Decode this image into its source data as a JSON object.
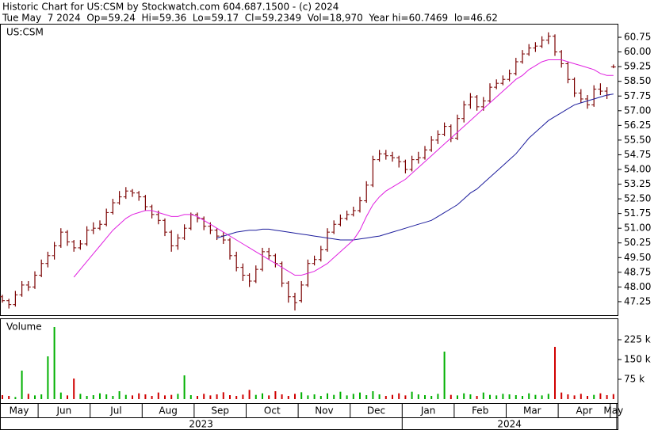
{
  "chart_data": {
    "type": "ohlc",
    "title": "Historic Chart for US:CSM by Stockwatch.com 604.687.1500 - (c) 2024",
    "subtitle": "Tue May  7 2024  Op=59.24  Hi=59.36  Lo=59.17  Cl=59.2349  Vol=18,970  Year hi=60.7469  lo=46.62",
    "symbol": "US:CSM",
    "volume_label": "Volume",
    "bar_color": "#7a0000",
    "up_color": "#00b000",
    "down_color": "#d00000",
    "ma_fast_color": "#e020e0",
    "ma_slow_color": "#1c1c9c",
    "ylim": [
      46.56,
      61.44
    ],
    "yticks": [
      47.25,
      {
        "value": 48,
        "label": "48.00"
      },
      48.75,
      {
        "value": 49.5,
        "label": "49.50"
      },
      50.25,
      {
        "value": 51,
        "label": "51.00"
      },
      51.75,
      {
        "value": 52.5,
        "label": "52.50"
      },
      53.25,
      {
        "value": 54,
        "label": "54.00"
      },
      54.75,
      {
        "value": 55.5,
        "label": "55.50"
      },
      56.25,
      {
        "value": 57,
        "label": "57.00"
      },
      57.75,
      {
        "value": 58.5,
        "label": "58.50"
      },
      59.25,
      {
        "value": 60,
        "label": "60.00"
      },
      60.75
    ],
    "vol_ylim": [
      0,
      300000
    ],
    "vol_yticks": [
      {
        "value": 75000,
        "label": "75 k"
      },
      {
        "value": 150000,
        "label": "150 k"
      },
      {
        "value": 225000,
        "label": "225 k"
      }
    ],
    "years": [
      {
        "label": "2023",
        "months": [
          {
            "label": "May",
            "open": [
              47.5,
              47.3,
              47.1,
              47.6,
              48.1,
              48.0
            ],
            "high": [
              47.6,
              47.4,
              47.8,
              48.3,
              48.3,
              48.8
            ],
            "low": [
              47.2,
              46.9,
              47.0,
              47.5,
              47.8,
              47.9
            ],
            "close": [
              47.3,
              47.1,
              47.6,
              48.1,
              48.0,
              48.6
            ],
            "volume": [
              15000,
              12000,
              8000,
              108000,
              20000,
              14000
            ],
            "ma_fast": [
              null,
              null,
              null,
              null,
              null,
              null
            ],
            "ma_slow": [
              null,
              null,
              null,
              null,
              null,
              null
            ]
          },
          {
            "label": "Jun",
            "open": [
              48.6,
              49.2,
              49.6,
              50.1,
              50.8,
              50.3,
              50.0,
              50.2
            ],
            "high": [
              49.4,
              49.8,
              50.3,
              51.0,
              50.9,
              50.4,
              50.4,
              51.1
            ],
            "low": [
              48.5,
              49.0,
              49.4,
              50.0,
              50.1,
              49.8,
              49.9,
              50.1
            ],
            "close": [
              49.2,
              49.6,
              50.1,
              50.8,
              50.3,
              50.0,
              50.2,
              50.9
            ],
            "volume": [
              18000,
              162000,
              273000,
              25000,
              14000,
              78000,
              20000,
              12000
            ],
            "ma_fast": [
              null,
              null,
              null,
              null,
              null,
              48.5,
              48.9,
              49.3
            ],
            "ma_slow": [
              null,
              null,
              null,
              null,
              null,
              null,
              null,
              null
            ]
          },
          {
            "label": "Jul",
            "open": [
              50.9,
              51.0,
              51.2,
              51.8,
              52.3,
              52.6,
              52.9,
              52.8
            ],
            "high": [
              51.3,
              51.4,
              52.0,
              52.5,
              52.9,
              53.1,
              53.0,
              52.9
            ],
            "low": [
              50.7,
              50.9,
              51.1,
              51.7,
              52.2,
              52.5,
              52.6,
              52.4
            ],
            "close": [
              51.0,
              51.2,
              51.8,
              52.3,
              52.6,
              52.9,
              52.8,
              52.6
            ],
            "volume": [
              15000,
              22000,
              18000,
              12000,
              30000,
              16000,
              14000,
              22000
            ],
            "ma_fast": [
              49.7,
              50.1,
              50.5,
              50.9,
              51.2,
              51.5,
              51.7,
              51.8
            ],
            "ma_slow": [
              null,
              null,
              null,
              null,
              null,
              null,
              null,
              null
            ]
          },
          {
            "label": "Aug",
            "open": [
              52.6,
              52.1,
              51.7,
              51.4,
              50.8,
              50.1,
              50.5,
              51.0
            ],
            "high": [
              52.7,
              52.2,
              51.9,
              51.5,
              50.9,
              50.7,
              51.2,
              51.8
            ],
            "low": [
              51.9,
              51.5,
              51.2,
              50.6,
              49.8,
              49.9,
              50.4,
              50.9
            ],
            "close": [
              52.1,
              51.7,
              51.4,
              50.8,
              50.1,
              50.5,
              51.0,
              51.7
            ],
            "volume": [
              18000,
              12000,
              25000,
              14000,
              16000,
              20000,
              90000,
              15000
            ],
            "ma_fast": [
              51.9,
              51.9,
              51.8,
              51.7,
              51.6,
              51.6,
              51.7,
              51.7
            ],
            "ma_slow": [
              null,
              null,
              null,
              null,
              null,
              null,
              null,
              null
            ]
          },
          {
            "label": "Sep",
            "open": [
              51.7,
              51.5,
              51.1,
              50.9,
              50.6,
              50.4,
              49.6,
              49.0
            ],
            "high": [
              51.8,
              51.6,
              51.3,
              51.0,
              50.8,
              50.5,
              49.8,
              49.2
            ],
            "low": [
              51.3,
              50.9,
              50.7,
              50.4,
              50.2,
              49.4,
              48.8,
              48.3
            ],
            "close": [
              51.5,
              51.1,
              50.9,
              50.6,
              50.4,
              49.6,
              49.0,
              48.6
            ],
            "volume": [
              12000,
              20000,
              14000,
              18000,
              26000,
              15000,
              12000,
              17000
            ],
            "ma_fast": [
              51.6,
              51.4,
              51.2,
              51.0,
              50.8,
              50.6,
              50.4,
              50.2
            ],
            "ma_slow": [
              null,
              null,
              null,
              50.5,
              50.6,
              50.7,
              50.8,
              50.85
            ]
          },
          {
            "label": "Oct",
            "open": [
              48.6,
              48.3,
              48.9,
              49.8,
              49.6,
              49.2,
              48.2,
              47.5
            ],
            "high": [
              48.7,
              49.1,
              50.0,
              50.0,
              49.7,
              49.3,
              48.3,
              47.7
            ],
            "low": [
              48.0,
              48.2,
              48.8,
              49.4,
              49.0,
              48.0,
              47.2,
              46.8
            ],
            "close": [
              48.3,
              48.9,
              49.8,
              49.6,
              49.2,
              48.2,
              47.5,
              47.2
            ],
            "volume": [
              35000,
              16000,
              22000,
              14000,
              30000,
              18000,
              12000,
              20000
            ],
            "ma_fast": [
              50.0,
              49.8,
              49.6,
              49.4,
              49.2,
              49.0,
              48.8,
              48.6
            ],
            "ma_slow": [
              50.9,
              50.9,
              50.95,
              50.95,
              50.9,
              50.85,
              50.8,
              50.75
            ]
          },
          {
            "label": "Nov",
            "open": [
              47.3,
              48.1,
              49.2,
              49.4,
              49.9,
              50.8,
              51.2,
              51.5
            ],
            "high": [
              48.3,
              49.4,
              49.6,
              50.1,
              51.0,
              51.4,
              51.7,
              51.9
            ],
            "low": [
              47.2,
              48.0,
              49.1,
              49.3,
              49.8,
              50.7,
              51.1,
              51.4
            ],
            "close": [
              48.1,
              49.2,
              49.4,
              49.9,
              50.8,
              51.2,
              51.5,
              51.7
            ],
            "volume": [
              26000,
              14000,
              18000,
              12000,
              22000,
              16000,
              28000,
              14000
            ],
            "ma_fast": [
              48.6,
              48.7,
              48.8,
              49.0,
              49.2,
              49.5,
              49.8,
              50.1
            ],
            "ma_slow": [
              50.7,
              50.65,
              50.6,
              50.55,
              50.5,
              50.45,
              50.4,
              50.4
            ]
          },
          {
            "label": "Dec",
            "open": [
              51.7,
              51.9,
              52.4,
              53.2,
              54.5,
              54.8,
              54.7,
              54.6
            ],
            "high": [
              52.1,
              52.6,
              53.4,
              54.7,
              55.0,
              55.0,
              54.9,
              54.7
            ],
            "low": [
              51.6,
              51.8,
              52.3,
              53.1,
              54.4,
              54.5,
              54.4,
              54.1
            ],
            "close": [
              51.9,
              52.4,
              53.2,
              54.5,
              54.8,
              54.7,
              54.6,
              54.4
            ],
            "volume": [
              20000,
              25000,
              15000,
              30000,
              18000,
              12000,
              16000,
              22000
            ],
            "ma_fast": [
              50.4,
              50.9,
              51.6,
              52.2,
              52.6,
              52.9,
              53.1,
              53.3
            ],
            "ma_slow": [
              50.4,
              50.45,
              50.5,
              50.55,
              50.6,
              50.7,
              50.8,
              50.9
            ]
          }
        ]
      },
      {
        "label": "2024",
        "months": [
          {
            "label": "Jan",
            "open": [
              54.4,
              54.0,
              54.5,
              54.6,
              55.0,
              55.5,
              55.8,
              56.2
            ],
            "high": [
              54.5,
              54.7,
              54.9,
              55.2,
              55.7,
              56.0,
              56.4,
              56.3
            ],
            "low": [
              53.8,
              53.9,
              54.3,
              54.5,
              54.9,
              55.3,
              55.7,
              55.4
            ],
            "close": [
              54.0,
              54.5,
              54.6,
              55.0,
              55.5,
              55.8,
              56.2,
              55.6
            ],
            "volume": [
              14000,
              28000,
              18000,
              15000,
              12000,
              20000,
              180000,
              16000
            ],
            "ma_fast": [
              53.5,
              53.8,
              54.1,
              54.4,
              54.7,
              55.0,
              55.3,
              55.6
            ],
            "ma_slow": [
              51.0,
              51.1,
              51.2,
              51.3,
              51.4,
              51.6,
              51.8,
              52.0
            ]
          },
          {
            "label": "Feb",
            "open": [
              55.6,
              56.6,
              57.3,
              57.7,
              57.2,
              57.5,
              58.2,
              58.4
            ],
            "high": [
              56.8,
              57.5,
              57.9,
              57.8,
              57.7,
              58.4,
              58.6,
              58.8
            ],
            "low": [
              55.5,
              56.4,
              57.1,
              57.0,
              57.0,
              57.4,
              58.1,
              58.3
            ],
            "close": [
              56.6,
              57.3,
              57.7,
              57.2,
              57.5,
              58.2,
              58.4,
              58.6
            ],
            "volume": [
              14000,
              22000,
              18000,
              12000,
              25000,
              16000,
              14000,
              20000
            ],
            "ma_fast": [
              55.9,
              56.2,
              56.5,
              56.8,
              57.1,
              57.4,
              57.7,
              58.0
            ],
            "ma_slow": [
              52.2,
              52.5,
              52.8,
              53.0,
              53.3,
              53.6,
              53.9,
              54.2
            ]
          },
          {
            "label": "Mar",
            "open": [
              58.6,
              58.9,
              59.5,
              59.9,
              60.2,
              60.3,
              60.6,
              60.8
            ],
            "high": [
              59.1,
              59.7,
              60.1,
              60.4,
              60.5,
              60.8,
              61.0,
              60.9
            ],
            "low": [
              58.5,
              58.8,
              59.4,
              59.8,
              60.0,
              60.2,
              60.4,
              59.8
            ],
            "close": [
              58.9,
              59.5,
              59.9,
              60.2,
              60.3,
              60.6,
              60.8,
              60.0
            ],
            "volume": [
              18000,
              15000,
              12000,
              22000,
              16000,
              14000,
              20000,
              198000
            ],
            "ma_fast": [
              58.3,
              58.6,
              58.8,
              59.1,
              59.3,
              59.5,
              59.6,
              59.6
            ],
            "ma_slow": [
              54.5,
              54.8,
              55.2,
              55.6,
              55.9,
              56.2,
              56.5,
              56.7
            ]
          },
          {
            "label": "Apr",
            "open": [
              60.0,
              59.4,
              58.6,
              57.9,
              57.6,
              57.3,
              58.1,
              58.0
            ],
            "high": [
              60.1,
              59.5,
              58.7,
              58.1,
              57.8,
              58.3,
              58.4,
              58.2
            ],
            "low": [
              59.2,
              58.4,
              57.7,
              57.4,
              57.1,
              57.2,
              57.8,
              57.6
            ],
            "close": [
              59.4,
              58.6,
              57.9,
              57.6,
              57.3,
              58.1,
              58.0,
              57.8
            ],
            "volume": [
              25000,
              18000,
              14000,
              20000,
              12000,
              16000,
              22000,
              15000
            ],
            "ma_fast": [
              59.6,
              59.5,
              59.4,
              59.3,
              59.2,
              59.1,
              58.9,
              58.8
            ],
            "ma_slow": [
              56.9,
              57.1,
              57.3,
              57.4,
              57.5,
              57.6,
              57.7,
              57.8
            ]
          },
          {
            "label": "May",
            "open": [
              59.24
            ],
            "high": [
              59.36
            ],
            "low": [
              59.17
            ],
            "close": [
              59.2349
            ],
            "volume": [
              18970
            ],
            "ma_fast": [
              58.8
            ],
            "ma_slow": [
              57.85
            ]
          }
        ]
      }
    ]
  }
}
